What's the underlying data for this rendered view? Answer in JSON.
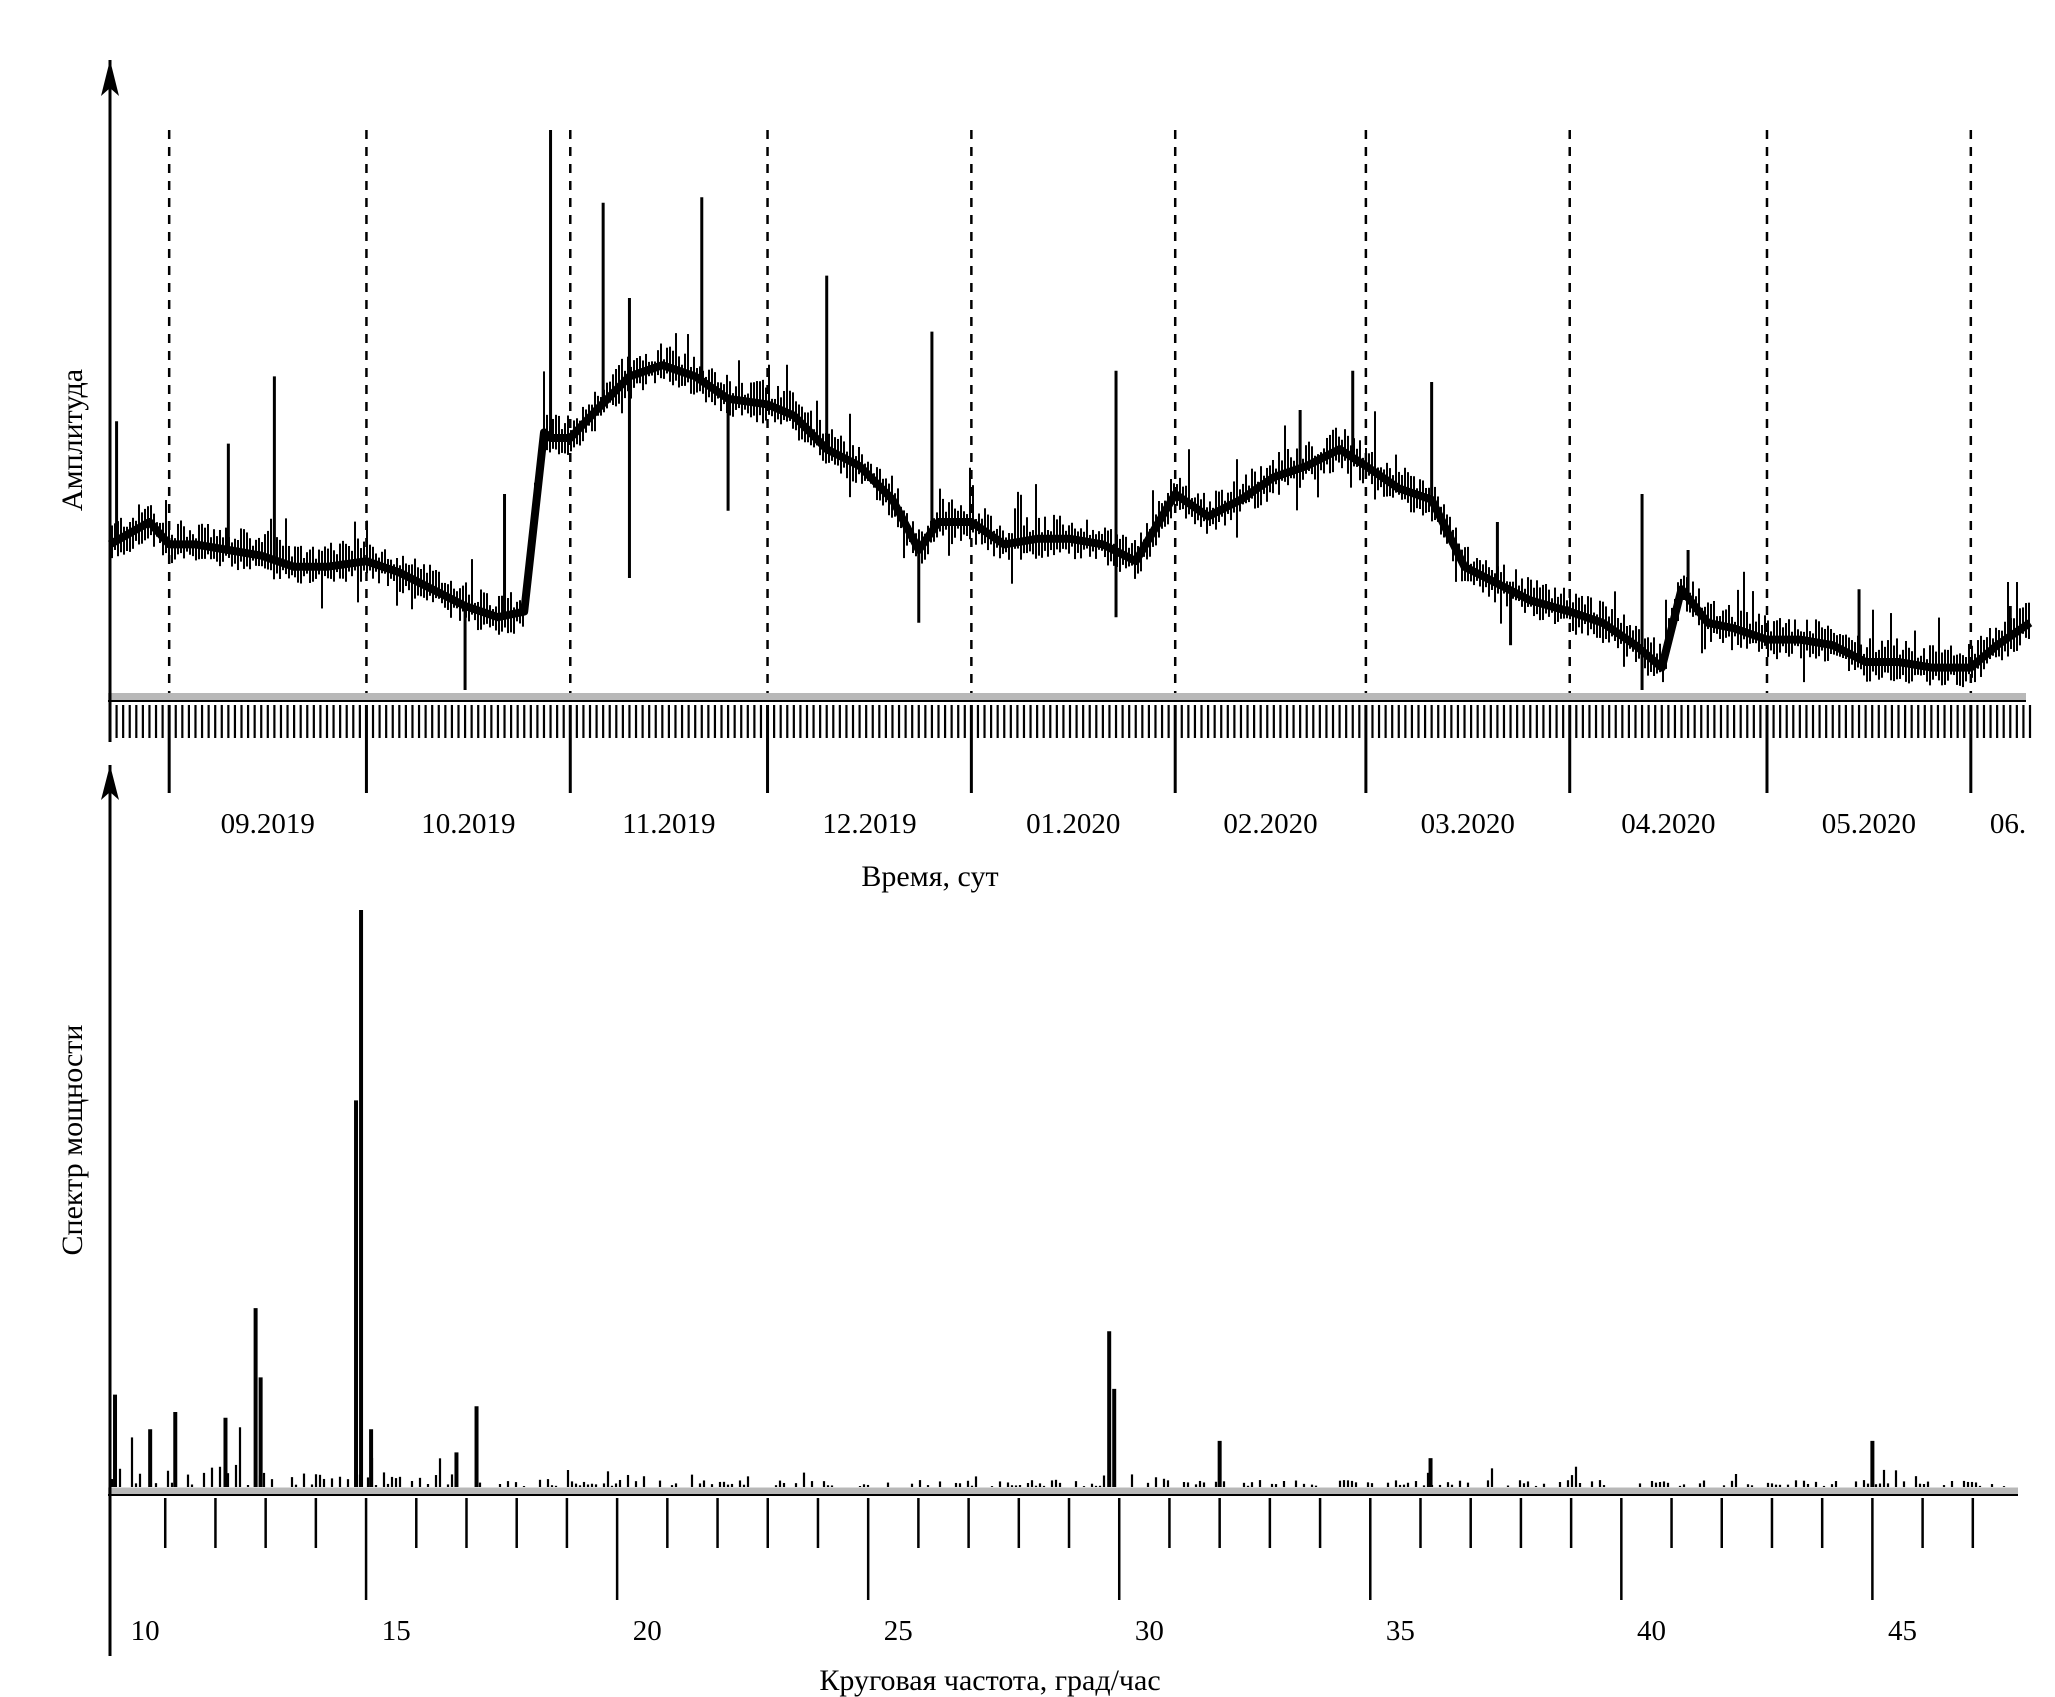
{
  "chart_data": [
    {
      "type": "line",
      "title": "",
      "xlabel": "Время, сут",
      "ylabel": "Амплитуда",
      "y_tick_labels": "none",
      "month_labels": [
        "09.2019",
        "10.2019",
        "11.2019",
        "12.2019",
        "01.2020",
        "02.2020",
        "03.2020",
        "04.2020",
        "05.2020",
        "06."
      ],
      "month_boundaries": [
        "2019-09-01",
        "2019-10-01",
        "2019-11-01",
        "2019-12-01",
        "2020-01-01",
        "2020-02-01",
        "2020-03-01",
        "2020-04-01",
        "2020-05-01",
        "2020-06-01"
      ],
      "x_range": [
        "2019-08-23",
        "2020-06-10"
      ],
      "ylim": [
        0,
        100
      ],
      "grid": "dashed vertical lines at month boundaries",
      "series": [
        {
          "x": [
            "2019-08-23",
            "2019-08-26",
            "2019-08-29",
            "2019-09-01",
            "2019-09-05",
            "2019-09-10",
            "2019-09-15",
            "2019-09-20",
            "2019-09-25",
            "2019-10-01",
            "2019-10-06",
            "2019-10-11",
            "2019-10-16",
            "2019-10-21",
            "2019-10-25",
            "2019-10-28",
            "2019-10-29",
            "2019-11-01",
            "2019-11-05",
            "2019-11-10",
            "2019-11-15",
            "2019-11-20",
            "2019-11-25",
            "2019-12-01",
            "2019-12-05",
            "2019-12-10",
            "2019-12-15",
            "2019-12-20",
            "2019-12-24",
            "2019-12-27",
            "2020-01-01",
            "2020-01-06",
            "2020-01-11",
            "2020-01-16",
            "2020-01-21",
            "2020-01-26",
            "2020-02-01",
            "2020-02-06",
            "2020-02-11",
            "2020-02-16",
            "2020-02-21",
            "2020-02-26",
            "2020-03-01",
            "2020-03-06",
            "2020-03-11",
            "2020-03-16",
            "2020-03-21",
            "2020-03-26",
            "2020-04-01",
            "2020-04-06",
            "2020-04-11",
            "2020-04-15",
            "2020-04-18",
            "2020-04-22",
            "2020-04-26",
            "2020-05-01",
            "2020-05-06",
            "2020-05-11",
            "2020-05-16",
            "2020-05-21",
            "2020-05-26",
            "2020-06-01",
            "2020-06-05",
            "2020-06-10"
          ],
          "y": [
            26,
            28,
            30,
            26,
            26,
            25,
            24,
            22,
            22,
            23,
            21,
            18,
            15,
            13,
            14,
            46,
            45,
            45,
            50,
            56,
            58,
            56,
            52,
            51,
            49,
            43,
            40,
            34,
            25,
            30,
            30,
            26,
            27,
            27,
            26,
            23,
            35,
            31,
            34,
            38,
            40,
            43,
            40,
            36,
            34,
            22,
            19,
            16,
            14,
            12,
            8,
            4,
            18,
            12,
            11,
            9,
            9,
            8,
            5,
            5,
            4,
            4,
            8,
            12
          ]
        }
      ],
      "spikes": [
        {
          "x": "2019-08-24",
          "y": 48
        },
        {
          "x": "2019-09-10",
          "y": 44
        },
        {
          "x": "2019-09-17",
          "y": 56
        },
        {
          "x": "2019-10-22",
          "y": 35
        },
        {
          "x": "2019-10-29",
          "y": 100
        },
        {
          "x": "2019-11-06",
          "y": 87
        },
        {
          "x": "2019-11-10",
          "y": 70
        },
        {
          "x": "2019-11-21",
          "y": 88
        },
        {
          "x": "2019-12-10",
          "y": 74
        },
        {
          "x": "2019-12-26",
          "y": 64
        },
        {
          "x": "2020-01-23",
          "y": 57
        },
        {
          "x": "2020-02-20",
          "y": 50
        },
        {
          "x": "2020-02-28",
          "y": 57
        },
        {
          "x": "2020-03-11",
          "y": 55
        },
        {
          "x": "2020-03-21",
          "y": 30
        },
        {
          "x": "2020-04-12",
          "y": 35
        },
        {
          "x": "2020-04-19",
          "y": 25
        },
        {
          "x": "2020-05-15",
          "y": 18
        },
        {
          "x": "2020-06-07",
          "y": 15
        }
      ],
      "dips": [
        {
          "x": "2019-10-16",
          "y": 0
        },
        {
          "x": "2019-11-10",
          "y": 20
        },
        {
          "x": "2019-11-25",
          "y": 32
        },
        {
          "x": "2019-12-24",
          "y": 12
        },
        {
          "x": "2020-01-23",
          "y": 13
        },
        {
          "x": "2020-03-23",
          "y": 8
        },
        {
          "x": "2020-04-12",
          "y": 0
        }
      ]
    },
    {
      "type": "bar",
      "title": "",
      "xlabel": "Круговая частота, град/час",
      "ylabel": "Спектр мощности",
      "y_tick_labels": "none",
      "xlim": [
        9.3,
        47.3
      ],
      "ylim": [
        0,
        100
      ],
      "x_tick_labels": [
        "10",
        "15",
        "20",
        "25",
        "30",
        "35",
        "40",
        "45"
      ],
      "x_ticks_major": [
        14.4,
        19.4,
        24.4,
        29.4,
        34.4,
        39.4,
        44.4
      ],
      "x_ticks_minor_step": 1,
      "peaks": [
        {
          "x": 9.4,
          "y": 16
        },
        {
          "x": 10.1,
          "y": 10
        },
        {
          "x": 10.6,
          "y": 13
        },
        {
          "x": 11.6,
          "y": 12
        },
        {
          "x": 12.2,
          "y": 31
        },
        {
          "x": 12.3,
          "y": 19
        },
        {
          "x": 14.2,
          "y": 67
        },
        {
          "x": 14.3,
          "y": 100
        },
        {
          "x": 14.5,
          "y": 10
        },
        {
          "x": 16.2,
          "y": 6
        },
        {
          "x": 16.6,
          "y": 14
        },
        {
          "x": 29.2,
          "y": 27
        },
        {
          "x": 29.3,
          "y": 17
        },
        {
          "x": 31.4,
          "y": 8
        },
        {
          "x": 35.6,
          "y": 5
        },
        {
          "x": 44.4,
          "y": 8
        }
      ]
    }
  ]
}
